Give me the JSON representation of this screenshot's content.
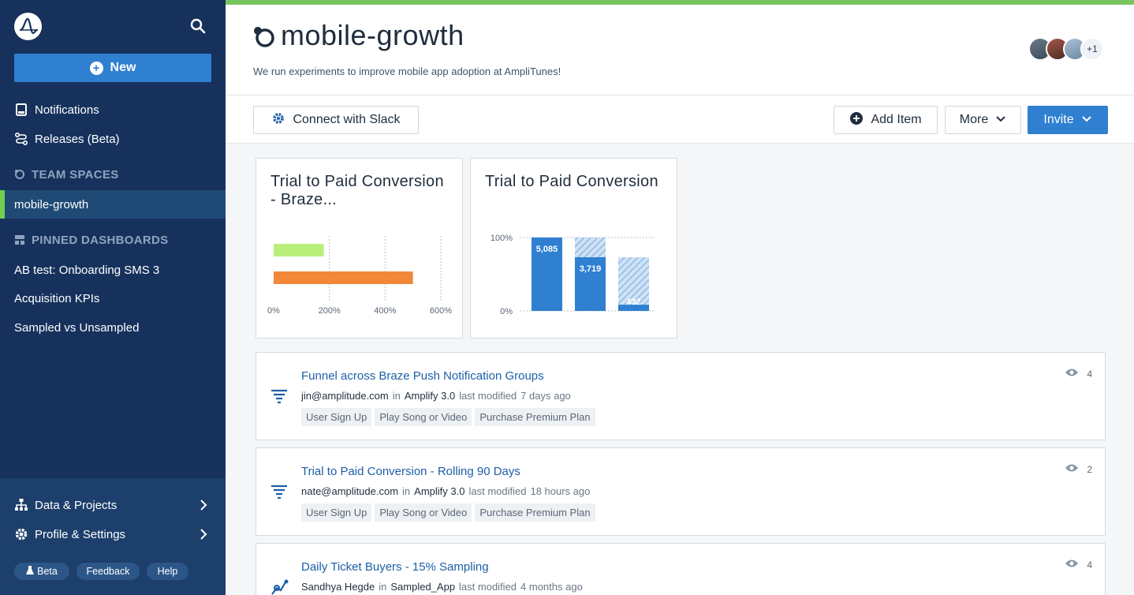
{
  "sidebar": {
    "new_label": "New",
    "nav": [
      {
        "label": "Notifications",
        "icon": "bell-icon"
      },
      {
        "label": "Releases (Beta)",
        "icon": "releases-icon"
      }
    ],
    "team_spaces_heading": "TEAM SPACES",
    "team_spaces": [
      {
        "label": "mobile-growth",
        "active": true
      }
    ],
    "pinned_heading": "PINNED DASHBOARDS",
    "pinned": [
      {
        "label": "AB test: Onboarding SMS 3"
      },
      {
        "label": "Acquisition KPIs"
      },
      {
        "label": "Sampled vs Unsampled"
      }
    ],
    "bottom": [
      {
        "label": "Data & Projects",
        "icon": "hierarchy-icon"
      },
      {
        "label": "Profile & Settings",
        "icon": "gear-icon"
      }
    ],
    "pills": {
      "beta": "Beta",
      "feedback": "Feedback",
      "help": "Help"
    }
  },
  "header": {
    "title": "mobile-growth",
    "description": "We run experiments to improve mobile app adoption at AmpliTunes!",
    "avatars_more": "+1"
  },
  "toolbar": {
    "slack": "Connect with Slack",
    "add_item": "Add Item",
    "more": "More",
    "invite": "Invite"
  },
  "cards": [
    {
      "title": "Trial to Paid Conversion - Braze...",
      "chart_data": {
        "type": "bar",
        "orientation": "horizontal",
        "categories": [
          "",
          ""
        ],
        "values": [
          180,
          500
        ],
        "colors": [
          "#b8ef7a",
          "#f2873a"
        ],
        "xlim": [
          0,
          600
        ],
        "xticks": [
          "0%",
          "200%",
          "400%",
          "600%"
        ]
      }
    },
    {
      "title": "Trial to Paid Conversion",
      "chart_data": {
        "type": "bar",
        "categories": [
          "step1",
          "step2",
          "step3"
        ],
        "values": [
          5085,
          3719,
          432
        ],
        "ylim": [
          0,
          5085
        ],
        "yticks": [
          "100%",
          "0%"
        ],
        "data_labels": [
          "5,085",
          "3,719",
          "432"
        ]
      }
    }
  ],
  "items": [
    {
      "title": "Funnel across Braze Push Notification Groups",
      "owner": "jin@amplitude.com",
      "in": "in",
      "project": "Amplify 3.0",
      "modified_label": "last modified",
      "modified": "7 days ago",
      "tags": [
        "User Sign Up",
        "Play Song or Video",
        "Purchase Premium Plan"
      ],
      "views": "4",
      "icon": "funnel-icon"
    },
    {
      "title": "Trial to Paid Conversion - Rolling 90 Days",
      "owner": "nate@amplitude.com",
      "in": "in",
      "project": "Amplify 3.0",
      "modified_label": "last modified",
      "modified": "18 hours ago",
      "tags": [
        "User Sign Up",
        "Play Song or Video",
        "Purchase Premium Plan"
      ],
      "views": "2",
      "icon": "funnel-icon"
    },
    {
      "title": "Daily Ticket Buyers - 15% Sampling",
      "owner": "Sandhya Hegde",
      "in": "in",
      "project": "Sampled_App",
      "modified_label": "last modified",
      "modified": "4 months ago",
      "tags": [],
      "views": "4",
      "icon": "segmentation-icon"
    }
  ],
  "colors": {
    "sidebar": "#16325c",
    "accent": "#2f80d1",
    "green": "#77c660",
    "link": "#1d5fa8"
  }
}
